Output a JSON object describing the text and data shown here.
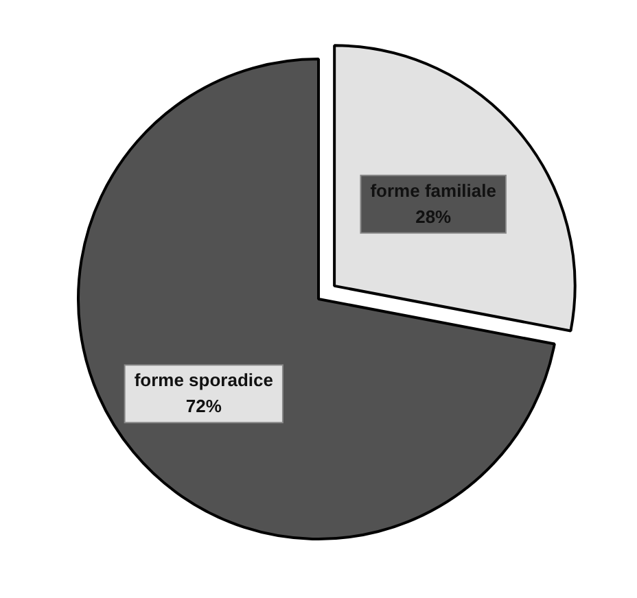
{
  "chart_data": {
    "type": "pie",
    "categories": [
      "forme familiale",
      "forme sporadice"
    ],
    "values": [
      28,
      72
    ],
    "colors": [
      "#e2e2e2",
      "#525252"
    ],
    "value_labels": [
      "28%",
      "72%"
    ],
    "legend": false
  }
}
